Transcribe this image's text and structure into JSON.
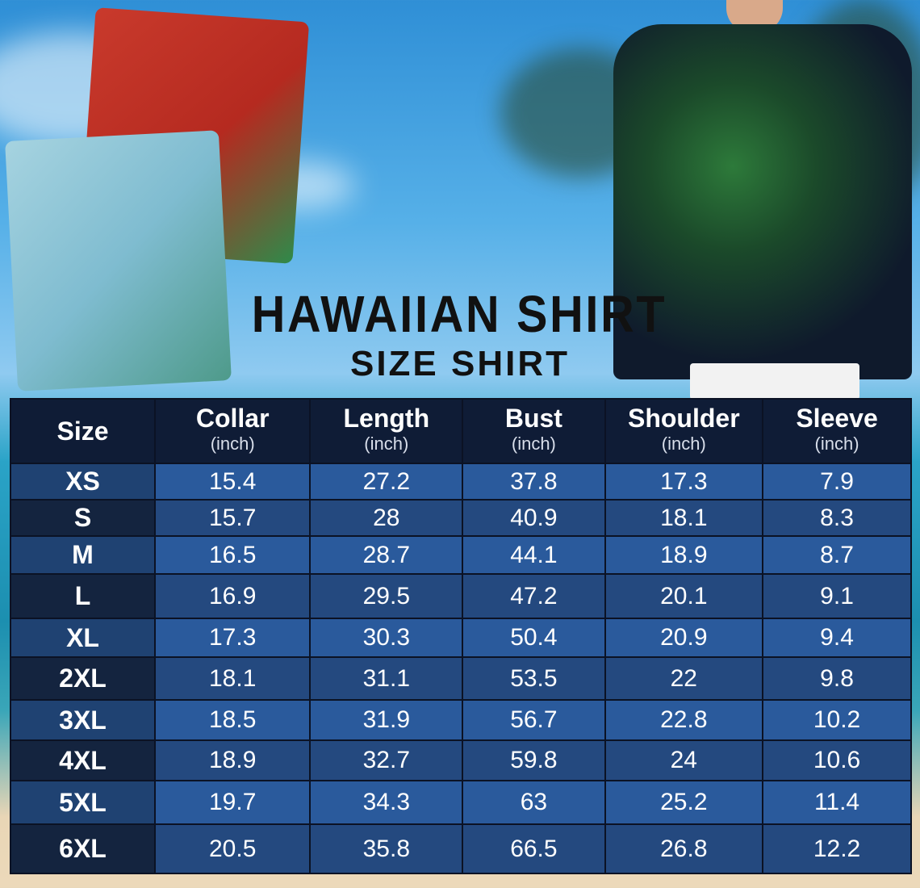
{
  "title": "HAWAIIAN SHIRT",
  "subtitle": "SIZE SHIRT",
  "table": {
    "headers": [
      {
        "label": "Size",
        "unit": ""
      },
      {
        "label": "Collar",
        "unit": "(inch)"
      },
      {
        "label": "Length",
        "unit": "(inch)"
      },
      {
        "label": "Bust",
        "unit": "(inch)"
      },
      {
        "label": "Shoulder",
        "unit": "(inch)"
      },
      {
        "label": "Sleeve",
        "unit": "(inch)"
      }
    ],
    "rows": [
      [
        "XS",
        "15.4",
        "27.2",
        "37.8",
        "17.3",
        "7.9"
      ],
      [
        "S",
        "15.7",
        "28",
        "40.9",
        "18.1",
        "8.3"
      ],
      [
        "M",
        "16.5",
        "28.7",
        "44.1",
        "18.9",
        "8.7"
      ],
      [
        "L",
        "16.9",
        "29.5",
        "47.2",
        "20.1",
        "9.1"
      ],
      [
        "XL",
        "17.3",
        "30.3",
        "50.4",
        "20.9",
        "9.4"
      ],
      [
        "2XL",
        "18.1",
        "31.1",
        "53.5",
        "22",
        "9.8"
      ],
      [
        "3XL",
        "18.5",
        "31.9",
        "56.7",
        "22.8",
        "10.2"
      ],
      [
        "4XL",
        "18.9",
        "32.7",
        "59.8",
        "24",
        "10.6"
      ],
      [
        "5XL",
        "19.7",
        "34.3",
        "63",
        "25.2",
        "11.4"
      ],
      [
        "6XL",
        "20.5",
        "35.8",
        "66.5",
        "26.8",
        "12.2"
      ]
    ]
  },
  "images": {
    "folded_shirts": "red and light-blue floral hawaiian shirts, folded",
    "model_shirt": "man wearing navy flamingo and monstera leaf shirt"
  },
  "colors": {
    "header": "#0f1c36",
    "row_light": "#2a5a9c",
    "row_dark": "#24497f"
  }
}
